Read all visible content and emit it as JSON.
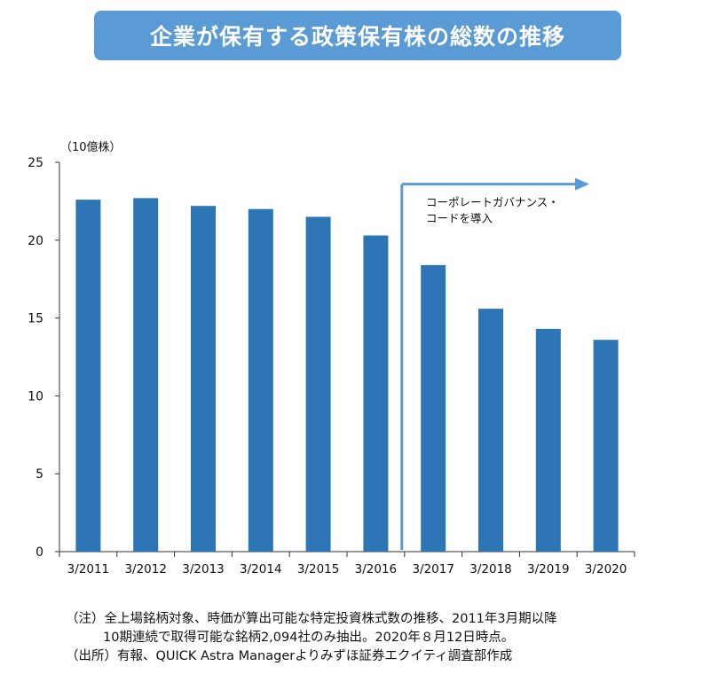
{
  "title": "企業が保有する政策保有株の総数の推移",
  "chart_data": {
    "type": "bar",
    "title": "企業が保有する政策保有株の総数の推移",
    "unit_label": "（10億株）",
    "categories": [
      "3/2011",
      "3/2012",
      "3/2013",
      "3/2014",
      "3/2015",
      "3/2016",
      "3/2017",
      "3/2018",
      "3/2019",
      "3/2020"
    ],
    "values": [
      22.6,
      22.7,
      22.2,
      22.0,
      21.5,
      20.3,
      18.4,
      15.6,
      14.3,
      13.6
    ],
    "ylim": [
      0,
      25
    ],
    "yticks": [
      0,
      5,
      10,
      15,
      20,
      25
    ],
    "grid": false,
    "bar_color": "#2e75b6",
    "annotation": {
      "text_line1": "コーポレートガバナンス・",
      "text_line2": "コードを導入",
      "start_after_category": "3/2016",
      "arrow_color": "#5b9bd5"
    }
  },
  "notes": {
    "line1": "（注）全上場銘柄対象、時価が算出可能な特定投資株式数の推移、2011年3月期以降",
    "line2": "10期連続で取得可能な銘柄2,094社のみ抽出。2020年８月12日時点。",
    "line3": "（出所）有報、QUICK Astra Managerよりみずほ証券エクイティ調査部作成"
  }
}
